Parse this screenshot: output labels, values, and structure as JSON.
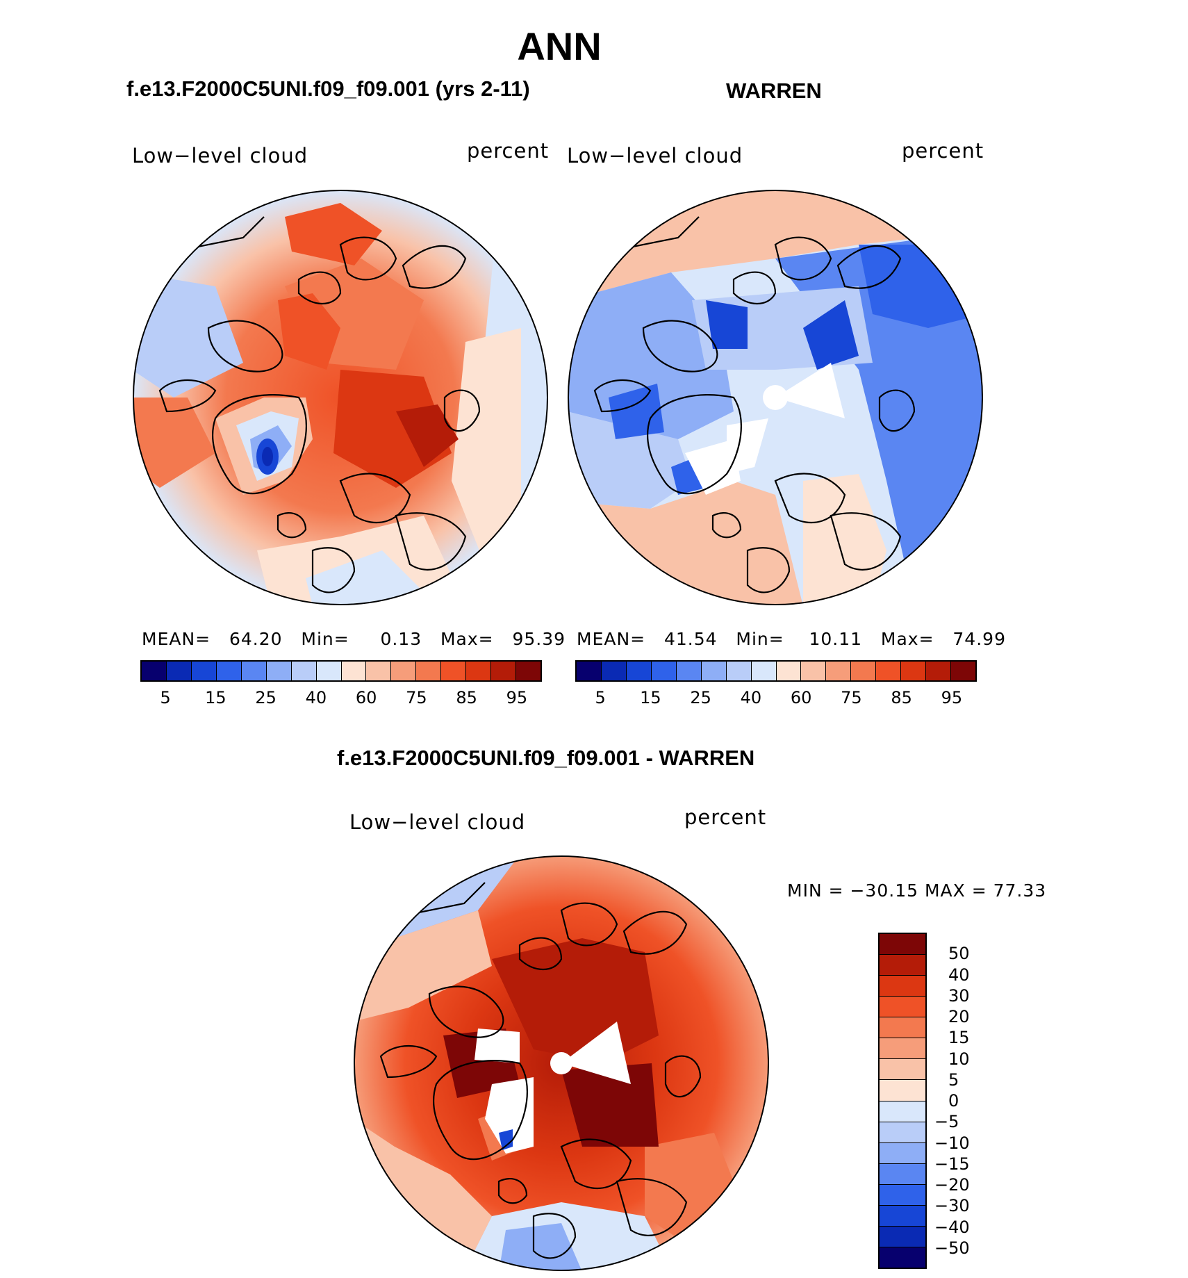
{
  "page": {
    "title": "ANN",
    "diff_title": "f.e13.F2000C5UNI.f09_f09.001 - WARREN"
  },
  "panels": [
    {
      "case_title": "f.e13.F2000C5UNI.f09_f09.001 (yrs 2-11)",
      "variable": "Low−level cloud",
      "units": "percent",
      "stats": {
        "mean_label": "MEAN=",
        "mean": "64.20",
        "min_label": "Min=",
        "min": "0.13",
        "max_label": "Max=",
        "max": "95.39"
      }
    },
    {
      "case_title": "WARREN",
      "variable": "Low−level cloud",
      "units": "percent",
      "stats": {
        "mean_label": "MEAN=",
        "mean": "41.54",
        "min_label": "Min=",
        "min": "10.11",
        "max_label": "Max=",
        "max": "74.99"
      }
    },
    {
      "case_title": "f.e13.F2000C5UNI.f09_f09.001 - WARREN",
      "variable": "Low−level cloud",
      "units": "percent",
      "stats_text": "MIN = −30.15 MAX =   77.33"
    }
  ],
  "colorbar_abs": {
    "tick_labels": [
      "5",
      "15",
      "25",
      "40",
      "60",
      "75",
      "85",
      "95"
    ],
    "colors": [
      "#07006e",
      "#0a2ab4",
      "#1746d6",
      "#2f62ea",
      "#5a86f2",
      "#8eaef6",
      "#b9cdf8",
      "#d9e7fb",
      "#fde3d3",
      "#f9c2a8",
      "#f69d7a",
      "#f3794f",
      "#ef5227",
      "#dc3712",
      "#b41c08",
      "#7d0606"
    ]
  },
  "colorbar_diff": {
    "tick_labels": [
      "50",
      "40",
      "30",
      "20",
      "15",
      "10",
      "5",
      "0",
      "−5",
      "−10",
      "−15",
      "−20",
      "−30",
      "−40",
      "−50"
    ],
    "colors": [
      "#7d0606",
      "#b41c08",
      "#dc3712",
      "#ef5227",
      "#f3794f",
      "#f69d7a",
      "#f9c2a8",
      "#fde3d3",
      "#d9e7fb",
      "#b9cdf8",
      "#8eaef6",
      "#5a86f2",
      "#2f62ea",
      "#1746d6",
      "#0a2ab4",
      "#07006e"
    ]
  },
  "map_colors": {
    "land_outline": "#000000",
    "missing": "#ffffff"
  }
}
